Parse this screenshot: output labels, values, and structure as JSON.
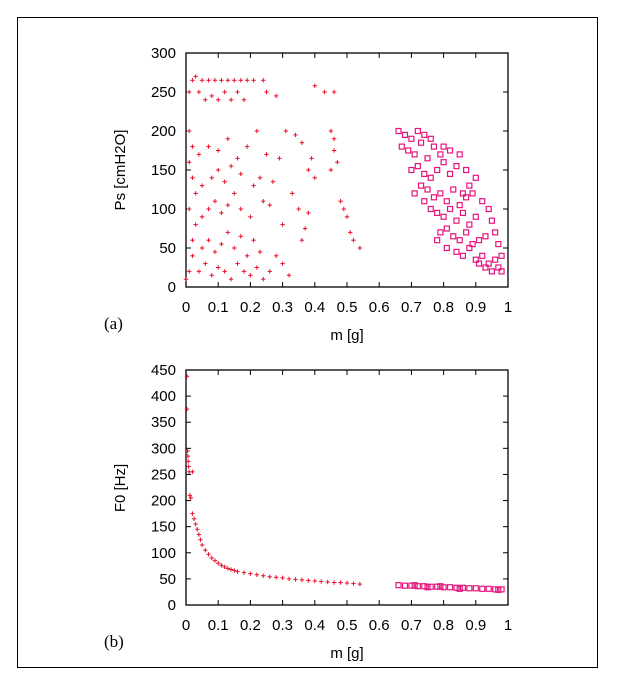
{
  "chart_data": [
    {
      "type": "scatter",
      "panel_label": "(a)",
      "xlabel": "m [g]",
      "ylabel": "Ps [cmH2O]",
      "xlim": [
        0,
        1
      ],
      "ylim": [
        0,
        300
      ],
      "xticks": [
        "0",
        "0.1",
        "0.2",
        "0.3",
        "0.4",
        "0.5",
        "0.6",
        "0.7",
        "0.8",
        "0.9",
        "1"
      ],
      "yticks": [
        "0",
        "50",
        "100",
        "150",
        "200",
        "250",
        "300"
      ],
      "grid": false,
      "series": [
        {
          "color": "#e8112d",
          "marker": "plus",
          "points": [
            [
              0.0,
              10
            ],
            [
              0.01,
              20
            ],
            [
              0.02,
              40
            ],
            [
              0.02,
              60
            ],
            [
              0.03,
              80
            ],
            [
              0.01,
              100
            ],
            [
              0.03,
              120
            ],
            [
              0.02,
              140
            ],
            [
              0.01,
              160
            ],
            [
              0.02,
              180
            ],
            [
              0.01,
              200
            ],
            [
              0.01,
              250
            ],
            [
              0.02,
              265
            ],
            [
              0.03,
              270
            ],
            [
              0.05,
              265
            ],
            [
              0.07,
              265
            ],
            [
              0.09,
              265
            ],
            [
              0.11,
              265
            ],
            [
              0.13,
              265
            ],
            [
              0.15,
              265
            ],
            [
              0.17,
              265
            ],
            [
              0.19,
              265
            ],
            [
              0.21,
              265
            ],
            [
              0.24,
              265
            ],
            [
              0.04,
              250
            ],
            [
              0.06,
              240
            ],
            [
              0.08,
              245
            ],
            [
              0.1,
              240
            ],
            [
              0.12,
              250
            ],
            [
              0.14,
              240
            ],
            [
              0.16,
              250
            ],
            [
              0.18,
              240
            ],
            [
              0.25,
              250
            ],
            [
              0.28,
              245
            ],
            [
              0.04,
              20
            ],
            [
              0.06,
              30
            ],
            [
              0.08,
              15
            ],
            [
              0.1,
              25
            ],
            [
              0.12,
              20
            ],
            [
              0.14,
              10
            ],
            [
              0.16,
              30
            ],
            [
              0.18,
              20
            ],
            [
              0.2,
              15
            ],
            [
              0.22,
              25
            ],
            [
              0.24,
              10
            ],
            [
              0.26,
              20
            ],
            [
              0.05,
              50
            ],
            [
              0.07,
              60
            ],
            [
              0.09,
              45
            ],
            [
              0.11,
              55
            ],
            [
              0.13,
              70
            ],
            [
              0.15,
              50
            ],
            [
              0.17,
              65
            ],
            [
              0.19,
              40
            ],
            [
              0.21,
              60
            ],
            [
              0.23,
              45
            ],
            [
              0.05,
              90
            ],
            [
              0.07,
              100
            ],
            [
              0.09,
              110
            ],
            [
              0.11,
              95
            ],
            [
              0.13,
              105
            ],
            [
              0.15,
              120
            ],
            [
              0.17,
              100
            ],
            [
              0.2,
              90
            ],
            [
              0.24,
              110
            ],
            [
              0.26,
              105
            ],
            [
              0.05,
              130
            ],
            [
              0.08,
              140
            ],
            [
              0.1,
              150
            ],
            [
              0.12,
              135
            ],
            [
              0.14,
              155
            ],
            [
              0.17,
              145
            ],
            [
              0.21,
              130
            ],
            [
              0.23,
              140
            ],
            [
              0.27,
              135
            ],
            [
              0.04,
              170
            ],
            [
              0.07,
              180
            ],
            [
              0.1,
              175
            ],
            [
              0.13,
              190
            ],
            [
              0.16,
              165
            ],
            [
              0.19,
              180
            ],
            [
              0.22,
              200
            ],
            [
              0.25,
              170
            ],
            [
              0.29,
              165
            ],
            [
              0.31,
              200
            ],
            [
              0.34,
              195
            ],
            [
              0.36,
              185
            ],
            [
              0.38,
              150
            ],
            [
              0.4,
              140
            ],
            [
              0.33,
              120
            ],
            [
              0.35,
              100
            ],
            [
              0.37,
              75
            ],
            [
              0.3,
              80
            ],
            [
              0.28,
              40
            ],
            [
              0.3,
              30
            ],
            [
              0.32,
              15
            ],
            [
              0.36,
              60
            ],
            [
              0.38,
              95
            ],
            [
              0.39,
              165
            ],
            [
              0.45,
              200
            ],
            [
              0.46,
              190
            ],
            [
              0.46,
              175
            ],
            [
              0.47,
              160
            ],
            [
              0.45,
              150
            ],
            [
              0.4,
              258
            ],
            [
              0.43,
              250
            ],
            [
              0.46,
              250
            ],
            [
              0.48,
              110
            ],
            [
              0.49,
              100
            ],
            [
              0.5,
              90
            ],
            [
              0.51,
              70
            ],
            [
              0.52,
              60
            ],
            [
              0.54,
              50
            ]
          ]
        },
        {
          "color": "#e6157d",
          "marker": "square",
          "points": [
            [
              0.66,
              200
            ],
            [
              0.68,
              195
            ],
            [
              0.7,
              190
            ],
            [
              0.72,
              200
            ],
            [
              0.74,
              195
            ],
            [
              0.76,
              190
            ],
            [
              0.67,
              180
            ],
            [
              0.69,
              175
            ],
            [
              0.71,
              170
            ],
            [
              0.73,
              185
            ],
            [
              0.75,
              165
            ],
            [
              0.77,
              180
            ],
            [
              0.79,
              170
            ],
            [
              0.7,
              150
            ],
            [
              0.72,
              155
            ],
            [
              0.74,
              145
            ],
            [
              0.76,
              140
            ],
            [
              0.78,
              150
            ],
            [
              0.8,
              160
            ],
            [
              0.82,
              145
            ],
            [
              0.84,
              155
            ],
            [
              0.73,
              130
            ],
            [
              0.75,
              125
            ],
            [
              0.77,
              115
            ],
            [
              0.79,
              120
            ],
            [
              0.81,
              110
            ],
            [
              0.83,
              125
            ],
            [
              0.85,
              105
            ],
            [
              0.87,
              115
            ],
            [
              0.76,
              100
            ],
            [
              0.78,
              95
            ],
            [
              0.8,
              90
            ],
            [
              0.82,
              100
            ],
            [
              0.84,
              85
            ],
            [
              0.86,
              95
            ],
            [
              0.88,
              80
            ],
            [
              0.9,
              90
            ],
            [
              0.79,
              70
            ],
            [
              0.81,
              75
            ],
            [
              0.83,
              65
            ],
            [
              0.85,
              60
            ],
            [
              0.87,
              70
            ],
            [
              0.89,
              55
            ],
            [
              0.91,
              60
            ],
            [
              0.93,
              65
            ],
            [
              0.84,
              45
            ],
            [
              0.86,
              40
            ],
            [
              0.88,
              50
            ],
            [
              0.9,
              35
            ],
            [
              0.92,
              40
            ],
            [
              0.94,
              30
            ],
            [
              0.96,
              35
            ],
            [
              0.97,
              25
            ],
            [
              0.98,
              20
            ],
            [
              0.95,
              20
            ],
            [
              0.93,
              25
            ],
            [
              0.91,
              30
            ],
            [
              0.8,
              180
            ],
            [
              0.82,
              175
            ],
            [
              0.85,
              170
            ],
            [
              0.87,
              150
            ],
            [
              0.9,
              140
            ],
            [
              0.89,
              120
            ],
            [
              0.92,
              110
            ],
            [
              0.94,
              100
            ],
            [
              0.95,
              85
            ],
            [
              0.96,
              70
            ],
            [
              0.97,
              55
            ],
            [
              0.98,
              40
            ],
            [
              0.78,
              60
            ],
            [
              0.81,
              50
            ],
            [
              0.86,
              120
            ],
            [
              0.88,
              130
            ],
            [
              0.74,
              110
            ],
            [
              0.71,
              120
            ]
          ]
        }
      ]
    },
    {
      "type": "scatter",
      "panel_label": "(b)",
      "xlabel": "m [g]",
      "ylabel": "F0 [Hz]",
      "xlim": [
        0,
        1
      ],
      "ylim": [
        0,
        450
      ],
      "xticks": [
        "0",
        "0.1",
        "0.2",
        "0.3",
        "0.4",
        "0.5",
        "0.6",
        "0.7",
        "0.8",
        "0.9",
        "1"
      ],
      "yticks": [
        "0",
        "50",
        "100",
        "150",
        "200",
        "250",
        "300",
        "350",
        "400",
        "450"
      ],
      "grid": false,
      "series": [
        {
          "color": "#e8112d",
          "marker": "plus",
          "points": [
            [
              0.003,
              438
            ],
            [
              0.003,
              375
            ],
            [
              0.005,
              295
            ],
            [
              0.006,
              285
            ],
            [
              0.007,
              275
            ],
            [
              0.008,
              265
            ],
            [
              0.01,
              255
            ],
            [
              0.012,
              210
            ],
            [
              0.015,
              205
            ],
            [
              0.02,
              255
            ],
            [
              0.02,
              175
            ],
            [
              0.025,
              165
            ],
            [
              0.03,
              155
            ],
            [
              0.035,
              145
            ],
            [
              0.04,
              135
            ],
            [
              0.045,
              125
            ],
            [
              0.05,
              115
            ],
            [
              0.06,
              105
            ],
            [
              0.07,
              97
            ],
            [
              0.08,
              90
            ],
            [
              0.09,
              85
            ],
            [
              0.1,
              80
            ],
            [
              0.11,
              76
            ],
            [
              0.12,
              73
            ],
            [
              0.13,
              70
            ],
            [
              0.14,
              68
            ],
            [
              0.15,
              66
            ],
            [
              0.16,
              64
            ],
            [
              0.18,
              62
            ],
            [
              0.2,
              60
            ],
            [
              0.22,
              58
            ],
            [
              0.24,
              56
            ],
            [
              0.26,
              54
            ],
            [
              0.28,
              53
            ],
            [
              0.3,
              52
            ],
            [
              0.32,
              50
            ],
            [
              0.34,
              49
            ],
            [
              0.36,
              48
            ],
            [
              0.38,
              47
            ],
            [
              0.4,
              46
            ],
            [
              0.42,
              45
            ],
            [
              0.44,
              44
            ],
            [
              0.46,
              43
            ],
            [
              0.48,
              43
            ],
            [
              0.5,
              42
            ],
            [
              0.52,
              41
            ],
            [
              0.54,
              40
            ]
          ]
        },
        {
          "color": "#e6157d",
          "marker": "square",
          "points": [
            [
              0.66,
              38
            ],
            [
              0.68,
              37
            ],
            [
              0.7,
              37
            ],
            [
              0.72,
              36
            ],
            [
              0.74,
              36
            ],
            [
              0.76,
              35
            ],
            [
              0.78,
              35
            ],
            [
              0.8,
              34
            ],
            [
              0.82,
              34
            ],
            [
              0.84,
              33
            ],
            [
              0.86,
              33
            ],
            [
              0.88,
              32
            ],
            [
              0.9,
              32
            ],
            [
              0.92,
              31
            ],
            [
              0.94,
              31
            ],
            [
              0.96,
              30
            ],
            [
              0.98,
              30
            ],
            [
              0.97,
              29
            ],
            [
              0.75,
              34
            ],
            [
              0.85,
              31
            ],
            [
              0.71,
              38
            ],
            [
              0.79,
              36
            ]
          ]
        }
      ]
    }
  ]
}
